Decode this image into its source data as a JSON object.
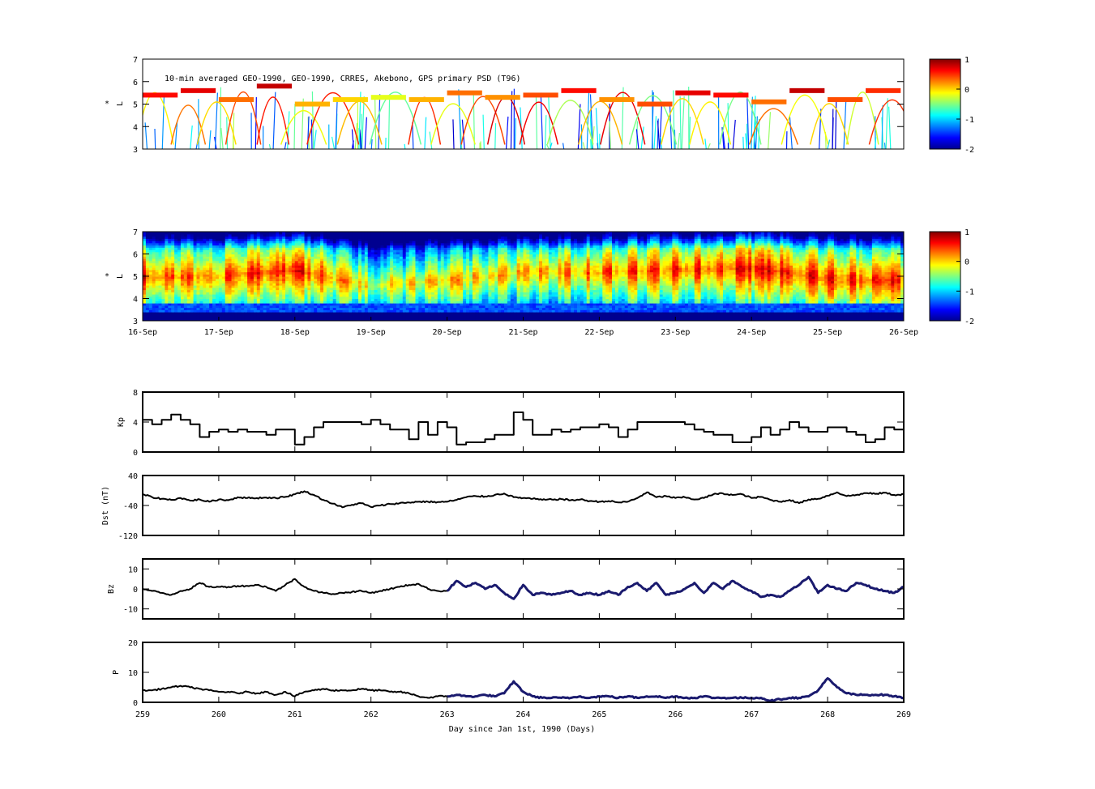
{
  "figure": {
    "annotation": "10-min averaged GEO-1990, GEO-1990, CRRES, Akebono, GPS  primary PSD (T96)",
    "xlabel": "Day since Jan 1st, 1990 (Days)"
  },
  "colormap": {
    "stops": [
      "#00008f",
      "#0000ff",
      "#0080ff",
      "#00ffff",
      "#80ff80",
      "#ffff00",
      "#ff8000",
      "#ff0000",
      "#800000"
    ],
    "range": [
      -2,
      1
    ],
    "ticks": [
      "1",
      "0",
      "-1",
      "-2"
    ]
  },
  "chart_data": [
    {
      "type": "heatmap",
      "name": "observed-psd",
      "ylabel": "L*",
      "ylabel_main": "L",
      "ylabel_sup": "*",
      "ylim": [
        3,
        7
      ],
      "yticks": [
        "3",
        "4",
        "5",
        "6",
        "7"
      ],
      "xlim": [
        259,
        269
      ],
      "band_L": [
        5.4,
        5.6,
        5.2,
        5.8,
        5.0,
        5.2,
        5.3,
        5.2,
        5.5,
        5.3,
        5.4,
        5.6,
        5.2,
        5.0,
        5.5,
        5.4,
        5.1,
        5.6,
        5.2,
        5.6
      ],
      "band_value": [
        0.6,
        0.7,
        0.3,
        0.8,
        0.1,
        0.0,
        -0.2,
        0.1,
        0.3,
        0.2,
        0.4,
        0.6,
        0.2,
        0.4,
        0.7,
        0.6,
        0.3,
        0.8,
        0.4,
        0.5
      ],
      "colorbar_ticks": [
        "1",
        "0",
        "-1",
        "-2"
      ]
    },
    {
      "type": "heatmap",
      "name": "reanalysis-psd",
      "ylabel": "L*",
      "ylabel_main": "L",
      "ylabel_sup": "*",
      "ylim": [
        3,
        7
      ],
      "yticks": [
        "3",
        "4",
        "5",
        "6",
        "7"
      ],
      "xlim": [
        259,
        269
      ],
      "date_ticks": [
        "16-Sep",
        "17-Sep",
        "18-Sep",
        "19-Sep",
        "20-Sep",
        "21-Sep",
        "22-Sep",
        "23-Sep",
        "24-Sep",
        "25-Sep",
        "26-Sep"
      ],
      "peak_L": [
        5.0,
        5.0,
        5.3,
        4.6,
        4.8,
        5.2,
        5.2,
        5.3,
        5.4,
        4.9,
        4.8
      ],
      "peak_value": [
        0.5,
        0.3,
        0.6,
        -0.2,
        0.0,
        0.0,
        0.3,
        0.4,
        0.6,
        0.5,
        0.4
      ],
      "colorbar_ticks": [
        "1",
        "0",
        "-1",
        "-2"
      ]
    },
    {
      "type": "line",
      "name": "kp",
      "ylabel": "Kp",
      "ylim": [
        0,
        8
      ],
      "yticks": [
        "0",
        "4",
        "8"
      ],
      "xlim": [
        259,
        269
      ],
      "x": [
        259.0,
        259.125,
        259.25,
        259.375,
        259.5,
        259.625,
        259.75,
        259.875,
        260.0,
        260.125,
        260.25,
        260.375,
        260.5,
        260.625,
        260.75,
        260.875,
        261.0,
        261.125,
        261.25,
        261.375,
        261.5,
        261.625,
        261.75,
        261.875,
        262.0,
        262.125,
        262.25,
        262.375,
        262.5,
        262.625,
        262.75,
        262.875,
        263.0,
        263.125,
        263.25,
        263.375,
        263.5,
        263.625,
        263.75,
        263.875,
        264.0,
        264.125,
        264.25,
        264.375,
        264.5,
        264.625,
        264.75,
        264.875,
        265.0,
        265.125,
        265.25,
        265.375,
        265.5,
        265.625,
        265.75,
        265.875,
        266.0,
        266.125,
        266.25,
        266.375,
        266.5,
        266.625,
        266.75,
        266.875,
        267.0,
        267.125,
        267.25,
        267.375,
        267.5,
        267.625,
        267.75,
        267.875,
        268.0,
        268.125,
        268.25,
        268.375,
        268.5,
        268.625,
        268.75,
        268.875
      ],
      "values": [
        4.3,
        3.7,
        4.3,
        5.0,
        4.3,
        3.7,
        2.0,
        2.7,
        3.0,
        2.7,
        3.0,
        2.7,
        2.7,
        2.3,
        3.0,
        3.0,
        1.0,
        2.0,
        3.3,
        4.0,
        4.0,
        4.0,
        4.0,
        3.7,
        4.3,
        3.7,
        3.0,
        3.0,
        1.7,
        4.0,
        2.3,
        4.0,
        3.3,
        1.0,
        1.3,
        1.3,
        1.7,
        2.3,
        2.3,
        5.3,
        4.3,
        2.3,
        2.3,
        3.0,
        2.7,
        3.0,
        3.3,
        3.3,
        3.7,
        3.3,
        2.0,
        3.0,
        4.0,
        4.0,
        4.0,
        4.0,
        4.0,
        3.7,
        3.0,
        2.7,
        2.3,
        2.3,
        1.3,
        1.3,
        2.0,
        3.3,
        2.3,
        3.0,
        4.0,
        3.3,
        2.7,
        2.7,
        3.3,
        3.3,
        2.7,
        2.3,
        1.3,
        1.7,
        3.3,
        3.0
      ]
    },
    {
      "type": "line",
      "name": "dst",
      "ylabel": "Dst (nT)",
      "ylim": [
        -120,
        40
      ],
      "yticks": [
        "-120",
        "-40",
        "40"
      ],
      "xlim": [
        259,
        269
      ],
      "x": [
        259.0,
        259.125,
        259.25,
        259.375,
        259.5,
        259.625,
        259.75,
        259.875,
        260.0,
        260.125,
        260.25,
        260.375,
        260.5,
        260.625,
        260.75,
        260.875,
        261.0,
        261.125,
        261.25,
        261.375,
        261.5,
        261.625,
        261.75,
        261.875,
        262.0,
        262.125,
        262.25,
        262.375,
        262.5,
        262.625,
        262.75,
        262.875,
        263.0,
        263.125,
        263.25,
        263.375,
        263.5,
        263.625,
        263.75,
        263.875,
        264.0,
        264.125,
        264.25,
        264.375,
        264.5,
        264.625,
        264.75,
        264.875,
        265.0,
        265.125,
        265.25,
        265.375,
        265.5,
        265.625,
        265.75,
        265.875,
        266.0,
        266.125,
        266.25,
        266.375,
        266.5,
        266.625,
        266.75,
        266.875,
        267.0,
        267.125,
        267.25,
        267.375,
        267.5,
        267.625,
        267.75,
        267.875,
        268.0,
        268.125,
        268.25,
        268.375,
        268.5,
        268.625,
        268.75,
        268.875,
        269.0
      ],
      "values": [
        -10,
        -18,
        -22,
        -25,
        -20,
        -27,
        -24,
        -30,
        -24,
        -26,
        -18,
        -20,
        -20,
        -19,
        -20,
        -17,
        -10,
        -2,
        -12,
        -25,
        -35,
        -45,
        -38,
        -34,
        -44,
        -40,
        -36,
        -34,
        -32,
        -30,
        -30,
        -31,
        -30,
        -25,
        -18,
        -15,
        -16,
        -12,
        -8,
        -18,
        -20,
        -22,
        -25,
        -24,
        -23,
        -26,
        -24,
        -28,
        -30,
        -28,
        -32,
        -30,
        -20,
        -5,
        -18,
        -15,
        -20,
        -18,
        -24,
        -20,
        -10,
        -8,
        -12,
        -10,
        -20,
        -17,
        -25,
        -30,
        -25,
        -34,
        -24,
        -22,
        -14,
        -5,
        -15,
        -12,
        -7,
        -9,
        -6,
        -12,
        -10
      ]
    },
    {
      "type": "line",
      "name": "bz",
      "ylabel": "Bz",
      "ylim": [
        -15,
        15
      ],
      "yticks": [
        "-10",
        "0",
        "10"
      ],
      "xlim": [
        259,
        269
      ],
      "series": [
        {
          "x": [
            259.0,
            259.125,
            259.25,
            259.375,
            259.5,
            259.625,
            259.75,
            259.875,
            260.0,
            260.125,
            260.25,
            260.375,
            260.5,
            260.625,
            260.75,
            260.875,
            261.0,
            261.125,
            261.25,
            261.375,
            261.5,
            261.625,
            261.75,
            261.875,
            262.0,
            262.125,
            262.25,
            262.375,
            262.5,
            262.625,
            262.75,
            262.875,
            263.0
          ],
          "values": [
            0,
            -1,
            -2,
            -3,
            -1,
            0,
            3,
            1,
            1,
            1,
            1.5,
            1.5,
            2,
            1,
            -1,
            2,
            5,
            1,
            -1,
            -2,
            -2.5,
            -2,
            -1.5,
            -1,
            -2,
            -1,
            0,
            1,
            2,
            2.5,
            0,
            -1,
            -1
          ],
          "color": "#000000"
        },
        {
          "x": [
            263.0,
            263.125,
            263.25,
            263.375,
            263.5,
            263.625,
            263.75,
            263.875,
            264.0,
            264.125,
            264.25,
            264.375,
            264.5,
            264.625,
            264.75,
            264.875,
            265.0,
            265.125,
            265.25,
            265.375,
            265.5,
            265.625,
            265.75,
            265.875,
            266.0,
            266.125,
            266.25,
            266.375,
            266.5,
            266.625,
            266.75,
            266.875,
            267.0,
            267.125,
            267.25,
            267.375,
            267.5,
            267.625,
            267.75,
            267.875,
            268.0,
            268.125,
            268.25,
            268.375,
            268.5,
            268.625,
            268.75,
            268.875,
            269.0
          ],
          "values": [
            -1,
            4,
            1,
            3,
            0,
            2,
            -2,
            -5,
            2,
            -3,
            -2,
            -3,
            -2,
            -1,
            -3,
            -2,
            -3,
            -1,
            -3,
            1,
            3,
            -1,
            3,
            -3,
            -2,
            0,
            3,
            -2,
            3,
            0,
            4,
            1,
            -1,
            -4,
            -3,
            -4,
            -1,
            2,
            6,
            -2,
            2,
            0,
            -1,
            3,
            2,
            0,
            -1,
            -2,
            1
          ],
          "color": "#1a1a6e"
        }
      ]
    },
    {
      "type": "line",
      "name": "pressure",
      "ylabel": "P",
      "ylim": [
        0,
        20
      ],
      "yticks": [
        "0",
        "10",
        "20"
      ],
      "xlim": [
        259,
        269
      ],
      "xticks": [
        "259",
        "260",
        "261",
        "262",
        "263",
        "264",
        "265",
        "266",
        "267",
        "268",
        "269"
      ],
      "series": [
        {
          "x": [
            259.0,
            259.125,
            259.25,
            259.375,
            259.5,
            259.625,
            259.75,
            259.875,
            260.0,
            260.125,
            260.25,
            260.375,
            260.5,
            260.625,
            260.75,
            260.875,
            261.0,
            261.125,
            261.25,
            261.375,
            261.5,
            261.625,
            261.75,
            261.875,
            262.0,
            262.125,
            262.25,
            262.375,
            262.5,
            262.625,
            262.75,
            262.875,
            263.0
          ],
          "values": [
            4,
            4,
            4.5,
            5,
            5.5,
            5,
            4.5,
            4,
            3.5,
            3.5,
            3,
            3.5,
            3,
            3.5,
            2.5,
            3.5,
            2,
            3.5,
            4,
            4.5,
            4,
            4,
            4,
            4.5,
            4,
            4,
            3.5,
            3.5,
            3,
            2,
            1.5,
            2,
            2
          ],
          "color": "#000000"
        },
        {
          "x": [
            263.0,
            263.125,
            263.25,
            263.375,
            263.5,
            263.625,
            263.75,
            263.875,
            264.0,
            264.125,
            264.25,
            264.375,
            264.5,
            264.625,
            264.75,
            264.875,
            265.0,
            265.125,
            265.25,
            265.375,
            265.5,
            265.625,
            265.75,
            265.875,
            266.0,
            266.125,
            266.25,
            266.375,
            266.5,
            266.625,
            266.75,
            266.875,
            267.0,
            267.125,
            267.25,
            267.375,
            267.5,
            267.625,
            267.75,
            267.875,
            268.0,
            268.125,
            268.25,
            268.375,
            268.5,
            268.625,
            268.75,
            268.875,
            269.0
          ],
          "values": [
            2,
            2.5,
            2,
            2,
            2.5,
            2,
            3,
            7,
            3.5,
            2,
            1.5,
            1.5,
            1.5,
            1.5,
            2,
            1.5,
            2,
            2,
            1.5,
            2,
            1.5,
            2,
            2,
            1.5,
            2,
            1.5,
            1.5,
            2,
            1.5,
            1.5,
            1.5,
            1.5,
            1.5,
            1.5,
            0.5,
            1,
            1.5,
            1.5,
            2,
            4,
            8,
            5,
            3,
            2.5,
            2.5,
            2.5,
            2.5,
            2,
            1.5
          ],
          "color": "#1a1a6e"
        }
      ]
    }
  ]
}
